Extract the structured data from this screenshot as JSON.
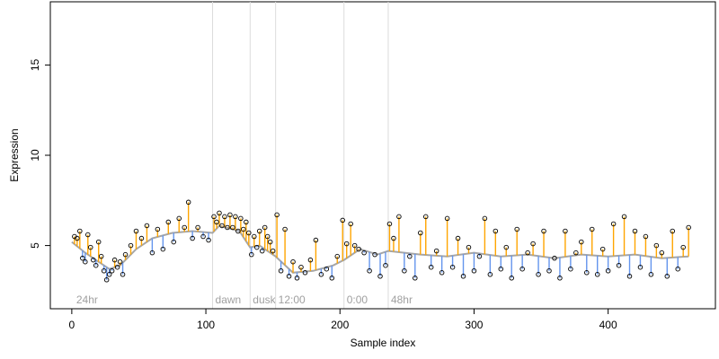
{
  "chart_data": {
    "type": "scatter",
    "title": "",
    "xlabel": "Sample index",
    "ylabel": "Expression",
    "xlim": [
      -16,
      480
    ],
    "ylim": [
      1.5,
      18.5
    ],
    "xticks": [
      0,
      100,
      200,
      300,
      400
    ],
    "yticks": [
      5,
      10,
      15
    ],
    "grid": false,
    "legend": "none",
    "segment_lines": [
      {
        "x": 105,
        "label": "dawn"
      },
      {
        "x": 133,
        "label": "dusk"
      },
      {
        "x": 152,
        "label": "12:00"
      },
      {
        "x": 203,
        "label": "0:00"
      },
      {
        "x": 236,
        "label": "48hr"
      }
    ],
    "start_label": "24hr",
    "colors": {
      "fitted_line": "#a6a6a6",
      "residual_above": "#ffa500",
      "residual_below": "#6495ed",
      "point_edge": "#000000",
      "segment_line": "#dcdcdc",
      "segment_label": "#a0a0a0"
    },
    "fitted_series": {
      "name": "",
      "x": [
        0,
        10,
        20,
        28,
        36,
        48,
        60,
        75,
        90,
        105,
        110,
        125,
        133,
        140,
        152,
        165,
        180,
        195,
        203,
        215,
        228,
        236,
        260,
        280,
        300,
        320,
        340,
        360,
        380,
        400,
        420,
        440,
        460
      ],
      "y": [
        5.2,
        4.6,
        4.1,
        3.7,
        3.9,
        4.8,
        5.4,
        5.7,
        5.8,
        5.7,
        6.1,
        5.8,
        4.9,
        5.0,
        4.4,
        3.5,
        3.6,
        3.9,
        4.2,
        4.8,
        4.5,
        4.7,
        4.5,
        4.4,
        4.6,
        4.4,
        4.5,
        4.3,
        4.5,
        4.4,
        4.5,
        4.3,
        4.4
      ]
    },
    "observations": {
      "x": [
        2,
        4,
        6,
        8,
        10,
        12,
        14,
        16,
        18,
        20,
        22,
        24,
        26,
        28,
        30,
        32,
        34,
        36,
        38,
        40,
        44,
        48,
        52,
        56,
        60,
        64,
        68,
        72,
        76,
        80,
        84,
        87,
        90,
        94,
        98,
        102,
        106,
        108,
        110,
        112,
        114,
        116,
        118,
        120,
        122,
        124,
        126,
        128,
        130,
        132,
        134,
        136,
        138,
        140,
        142,
        144,
        146,
        148,
        150,
        153,
        156,
        159,
        162,
        165,
        168,
        171,
        174,
        178,
        182,
        186,
        190,
        194,
        198,
        202,
        205,
        208,
        211,
        214,
        218,
        222,
        226,
        230,
        234,
        237,
        240,
        244,
        248,
        252,
        256,
        260,
        264,
        268,
        272,
        276,
        280,
        284,
        288,
        292,
        296,
        300,
        304,
        308,
        312,
        316,
        320,
        324,
        328,
        332,
        336,
        340,
        344,
        348,
        352,
        356,
        360,
        364,
        368,
        372,
        376,
        380,
        384,
        388,
        392,
        396,
        400,
        404,
        408,
        412,
        416,
        420,
        424,
        428,
        432,
        436,
        440,
        444,
        448,
        452,
        456,
        460
      ],
      "y": [
        5.5,
        5.4,
        5.8,
        4.3,
        4.1,
        5.6,
        4.9,
        4.2,
        3.9,
        5.2,
        4.4,
        3.6,
        3.1,
        3.4,
        3.6,
        4.2,
        3.8,
        4.1,
        3.4,
        4.5,
        5.0,
        5.8,
        5.4,
        6.1,
        4.6,
        5.9,
        4.8,
        6.3,
        5.2,
        6.5,
        6.0,
        7.4,
        5.4,
        6.0,
        5.5,
        5.3,
        6.6,
        6.3,
        6.8,
        6.1,
        6.6,
        6.0,
        6.7,
        6.0,
        6.6,
        5.8,
        6.5,
        5.9,
        6.3,
        5.7,
        4.5,
        5.5,
        4.9,
        5.8,
        4.7,
        6.0,
        5.5,
        5.2,
        4.7,
        6.7,
        3.6,
        5.9,
        3.3,
        4.1,
        3.2,
        3.8,
        3.5,
        4.2,
        5.3,
        3.4,
        3.7,
        3.2,
        4.4,
        6.4,
        5.1,
        6.2,
        5.0,
        4.8,
        4.6,
        3.6,
        4.5,
        3.3,
        3.9,
        6.2,
        5.4,
        6.6,
        3.6,
        4.4,
        3.2,
        5.7,
        6.6,
        3.8,
        4.7,
        3.5,
        6.5,
        3.8,
        5.4,
        3.3,
        4.9,
        3.6,
        4.4,
        6.5,
        3.4,
        5.8,
        3.7,
        4.9,
        3.2,
        5.9,
        3.7,
        4.6,
        5.1,
        3.4,
        5.8,
        3.6,
        4.3,
        3.2,
        5.8,
        3.7,
        4.6,
        5.2,
        3.5,
        5.9,
        3.4,
        4.8,
        3.6,
        6.2,
        3.9,
        6.6,
        3.3,
        5.8,
        3.8,
        5.5,
        3.4,
        5.0,
        4.6,
        3.3,
        5.8,
        3.7,
        4.9,
        6.0
      ]
    }
  }
}
